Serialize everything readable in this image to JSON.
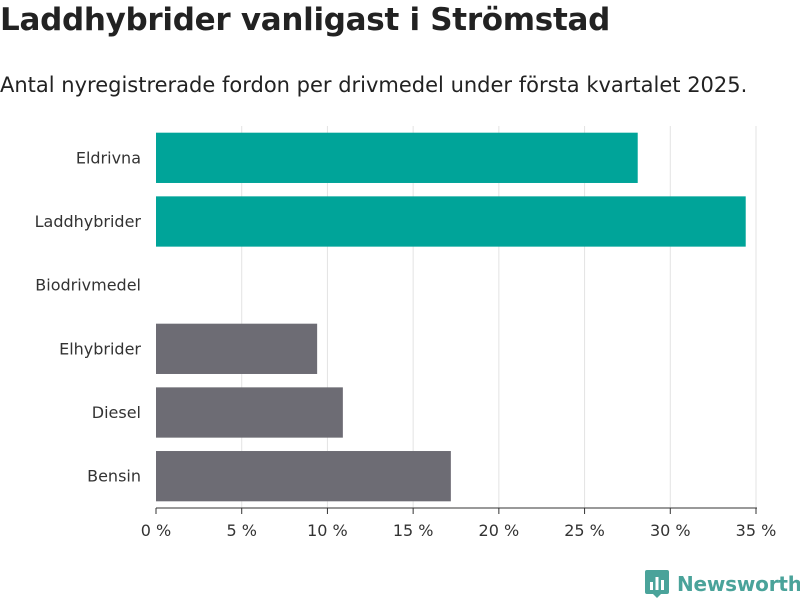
{
  "title": "Laddhybrider vanligast i Strömstad",
  "subtitle": "Antal nyregistrerade fordon per drivmedel under första kvartalet 2025.",
  "brand": {
    "name": "Newsworthy",
    "color": "#4aa39a"
  },
  "chart_data": {
    "type": "bar",
    "orientation": "horizontal",
    "categories": [
      "Eldrivna",
      "Laddhybrider",
      "Biodrivmedel",
      "Elhybrider",
      "Diesel",
      "Bensin"
    ],
    "values": [
      28.1,
      34.4,
      0,
      9.4,
      10.9,
      17.2
    ],
    "bar_colors": [
      "#00a499",
      "#00a499",
      "#00a499",
      "#6d6c74",
      "#6d6c74",
      "#6d6c74"
    ],
    "xlim": [
      0,
      35
    ],
    "xticks": [
      0,
      5,
      10,
      15,
      20,
      25,
      30,
      35
    ],
    "xtick_labels": [
      "0 %",
      "5 %",
      "10 %",
      "15 %",
      "20 %",
      "25 %",
      "30 %",
      "35 %"
    ],
    "grid": true,
    "title": "Laddhybrider vanligast i Strömstad",
    "subtitle": "Antal nyregistrerade fordon per drivmedel under första kvartalet 2025."
  }
}
